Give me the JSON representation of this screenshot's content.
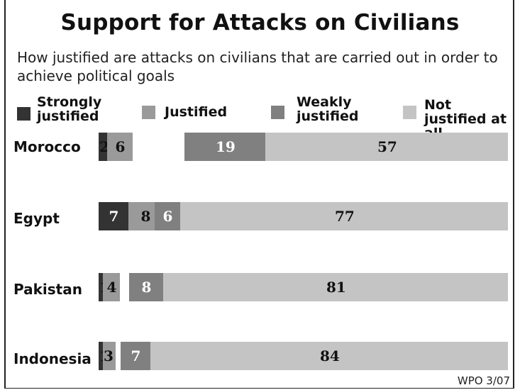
{
  "chart_data": {
    "type": "bar",
    "title": "Support for Attacks on Civilians",
    "subtitle": "How justified are attacks on civilians that are carried out in order to achieve political goals",
    "categories": [
      "Morocco",
      "Egypt",
      "Pakistan",
      "Indonesia"
    ],
    "series": [
      {
        "name": "Strongly justified",
        "values": [
          2,
          7,
          1,
          1
        ]
      },
      {
        "name": "Justified",
        "values": [
          6,
          8,
          4,
          3
        ]
      },
      {
        "name": "Weakly justified",
        "values": [
          19,
          6,
          8,
          7
        ]
      },
      {
        "name": "Not justified at all",
        "values": [
          57,
          77,
          81,
          84
        ]
      }
    ],
    "legend_placement": "top",
    "source": "WPO 3/07"
  },
  "colors": {
    "strongly": "#333333",
    "justified": "#9a9a9a",
    "weakly": "#808080",
    "not_justified": "#c4c4c4",
    "label_dark": "#111111",
    "label_light": "#ffffff"
  }
}
